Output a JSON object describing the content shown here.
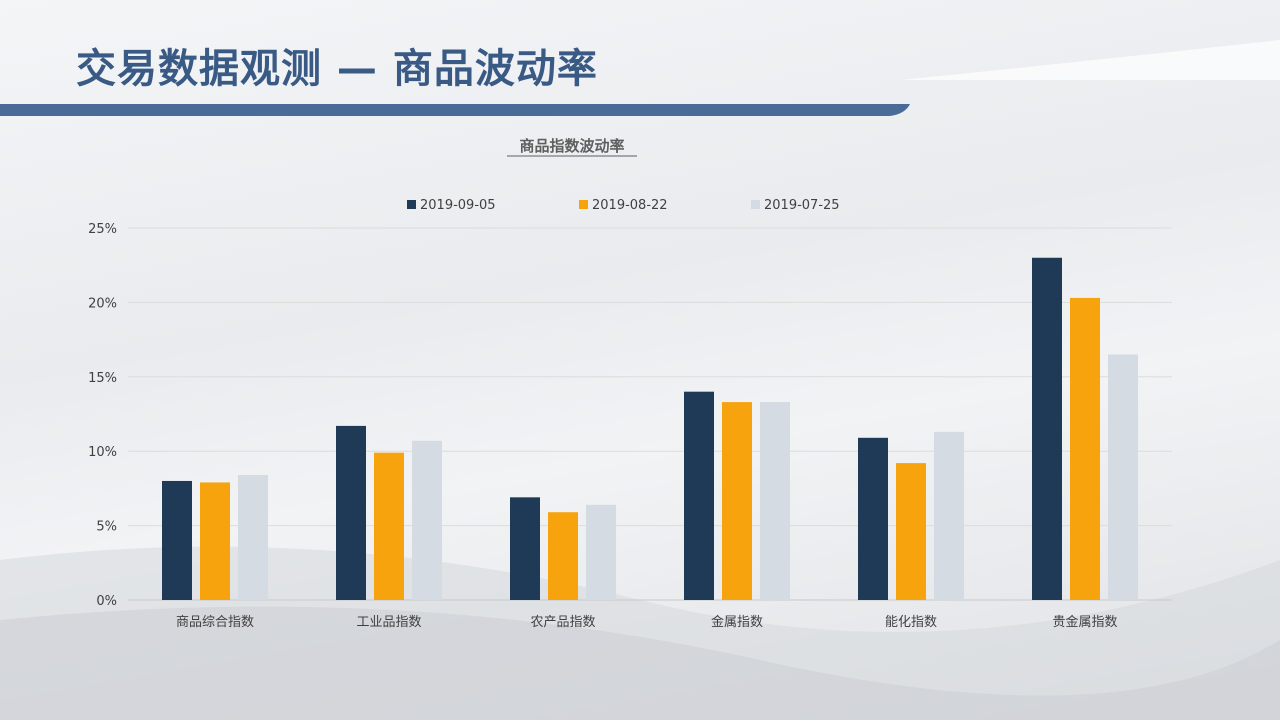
{
  "page": {
    "title": "交易数据观测 — 商品波动率"
  },
  "colors": {
    "title": "#3a5a86",
    "bar_accent": "#4a6b98"
  },
  "chart_data": {
    "type": "bar",
    "title": "商品指数波动率",
    "xlabel": "",
    "ylabel": "",
    "categories": [
      "商品综合指数",
      "工业品指数",
      "农产品指数",
      "金属指数",
      "能化指数",
      "贵金属指数"
    ],
    "series": [
      {
        "name": "2019-09-05",
        "color": "#1f3a56",
        "values": [
          8.0,
          11.7,
          6.9,
          14.0,
          10.9,
          23.0
        ]
      },
      {
        "name": "2019-08-22",
        "color": "#f6a30e",
        "values": [
          7.9,
          9.9,
          5.9,
          13.3,
          9.2,
          20.3
        ]
      },
      {
        "name": "2019-07-25",
        "color": "#d4dbe3",
        "values": [
          8.4,
          10.7,
          6.4,
          13.3,
          11.3,
          16.5
        ]
      }
    ],
    "ylim": [
      0,
      25
    ],
    "yticks": [
      "0%",
      "5%",
      "10%",
      "15%",
      "20%",
      "25%"
    ],
    "grid": true,
    "legend_position": "top-center"
  }
}
